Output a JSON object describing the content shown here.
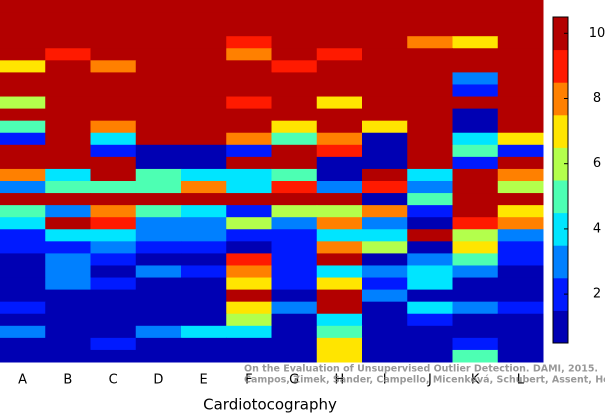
{
  "chart_data": {
    "type": "heatmap",
    "xlabel": "Cardiotocography",
    "annotations": [
      "On the Evaluation of Unsupervised Outlier Detection. DAMI, 2015.",
      "Campos, Zimek, Sander, Campello, Micenková, Schubert, Assent, Houle"
    ],
    "categories": [
      "A",
      "B",
      "C",
      "D",
      "E",
      "F",
      "G",
      "H",
      "I",
      "J",
      "K",
      "L"
    ],
    "colormap": "jet",
    "levels": 10,
    "clim": [
      0.5,
      10.5
    ],
    "cticks": [
      2,
      4,
      6,
      8,
      10
    ],
    "values": [
      [
        10,
        10,
        10,
        10,
        10,
        10,
        10,
        10,
        10,
        10,
        10,
        10
      ],
      [
        10,
        10,
        10,
        10,
        10,
        10,
        10,
        10,
        10,
        10,
        10,
        10
      ],
      [
        10,
        10,
        10,
        10,
        10,
        10,
        10,
        10,
        10,
        10,
        10,
        10
      ],
      [
        10,
        10,
        10,
        10,
        10,
        9,
        10,
        10,
        10,
        8,
        7,
        10
      ],
      [
        10,
        9,
        10,
        10,
        10,
        8,
        10,
        9,
        10,
        10,
        10,
        10
      ],
      [
        7,
        10,
        8,
        10,
        10,
        10,
        9,
        10,
        10,
        10,
        10,
        10
      ],
      [
        10,
        10,
        10,
        10,
        10,
        10,
        10,
        10,
        10,
        10,
        3,
        10
      ],
      [
        10,
        10,
        10,
        10,
        10,
        10,
        10,
        10,
        10,
        10,
        2,
        10
      ],
      [
        6,
        10,
        10,
        10,
        10,
        9,
        10,
        7,
        10,
        10,
        10,
        10
      ],
      [
        10,
        10,
        10,
        10,
        10,
        10,
        10,
        10,
        10,
        10,
        1,
        10
      ],
      [
        5,
        10,
        8,
        10,
        10,
        10,
        7,
        10,
        7,
        10,
        1,
        10
      ],
      [
        2,
        10,
        4,
        10,
        10,
        8,
        5,
        8,
        1,
        10,
        4,
        7
      ],
      [
        10,
        10,
        2,
        1,
        1,
        2,
        10,
        9,
        1,
        10,
        5,
        2
      ],
      [
        10,
        10,
        10,
        1,
        1,
        10,
        10,
        1,
        1,
        10,
        2,
        10
      ],
      [
        8,
        4,
        10,
        5,
        4,
        4,
        5,
        1,
        10,
        4,
        10,
        8
      ],
      [
        3,
        5,
        5,
        5,
        8,
        4,
        9,
        3,
        9,
        3,
        10,
        6
      ],
      [
        10,
        10,
        10,
        10,
        10,
        10,
        10,
        10,
        1,
        5,
        10,
        10
      ],
      [
        5,
        3,
        8,
        5,
        4,
        2,
        6,
        6,
        8,
        2,
        10,
        7
      ],
      [
        4,
        10,
        9,
        3,
        3,
        6,
        3,
        8,
        3,
        1,
        9,
        8
      ],
      [
        2,
        4,
        4,
        3,
        3,
        2,
        2,
        4,
        4,
        10,
        6,
        3
      ],
      [
        2,
        2,
        3,
        2,
        2,
        1,
        2,
        8,
        6,
        1,
        7,
        2
      ],
      [
        1,
        3,
        2,
        1,
        1,
        9,
        2,
        10,
        1,
        3,
        5,
        2
      ],
      [
        1,
        3,
        1,
        3,
        2,
        8,
        2,
        4,
        3,
        4,
        3,
        1
      ],
      [
        1,
        3,
        2,
        1,
        1,
        7,
        2,
        7,
        2,
        4,
        1,
        1
      ],
      [
        1,
        1,
        1,
        1,
        1,
        10,
        1,
        10,
        3,
        1,
        1,
        1
      ],
      [
        2,
        1,
        1,
        1,
        1,
        7,
        3,
        10,
        1,
        4,
        3,
        2
      ],
      [
        1,
        1,
        1,
        1,
        1,
        6,
        1,
        4,
        1,
        2,
        1,
        1
      ],
      [
        3,
        1,
        1,
        3,
        4,
        4,
        1,
        5,
        1,
        1,
        1,
        1
      ],
      [
        1,
        1,
        2,
        1,
        1,
        1,
        1,
        7,
        1,
        1,
        2,
        1
      ],
      [
        1,
        1,
        1,
        1,
        1,
        1,
        1,
        7,
        1,
        1,
        5,
        1
      ]
    ]
  }
}
